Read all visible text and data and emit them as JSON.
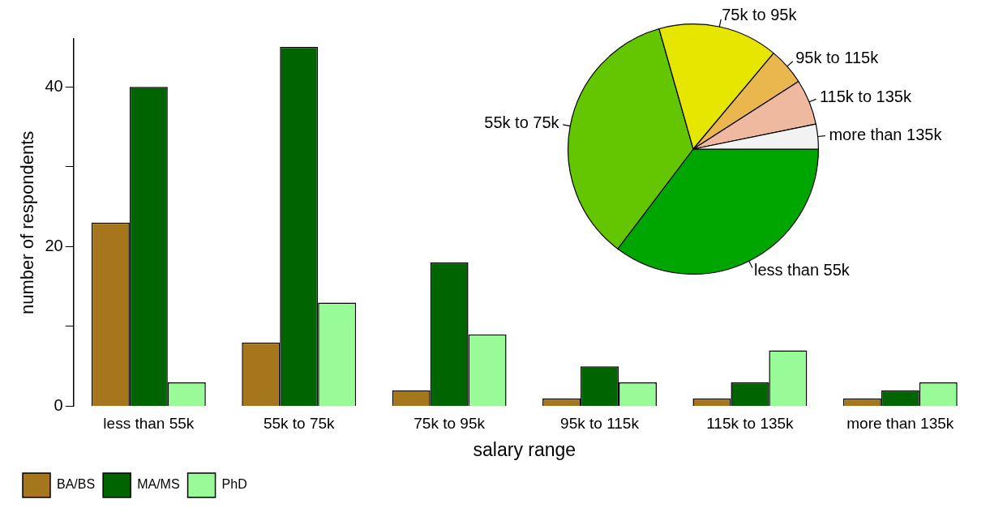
{
  "chart_data": [
    {
      "type": "bar",
      "xlabel": "salary range",
      "ylabel": "number of respondents",
      "categories": [
        "less than 55k",
        "55k to 75k",
        "75k to 95k",
        "95k to 115k",
        "115k to 135k",
        "more than 135k"
      ],
      "series": [
        {
          "name": "BA/BS",
          "color": "#a5761c",
          "values": [
            23,
            8,
            2,
            1,
            1,
            1
          ]
        },
        {
          "name": "MA/MS",
          "color": "#006400",
          "values": [
            40,
            45,
            18,
            5,
            3,
            2
          ]
        },
        {
          "name": "PhD",
          "color": "#98fb98",
          "values": [
            3,
            13,
            9,
            3,
            7,
            3
          ]
        }
      ],
      "ylim": [
        0,
        46
      ],
      "yticks": [
        0,
        {
          "value": 10,
          "label": null
        },
        20,
        {
          "value": 30,
          "label": null
        },
        40
      ],
      "grid": false,
      "legend": "bottom left"
    },
    {
      "type": "pie",
      "categories": [
        "less than 55k",
        "55k to 75k",
        "75k to 95k",
        "95k to 115k",
        "115k to 135k",
        "more than 135k"
      ],
      "values": [
        35.3,
        35.3,
        15.5,
        4.8,
        5.9,
        3.2
      ],
      "colors": [
        "#00a600",
        "#63c600",
        "#e6e600",
        "#eab64e",
        "#eeb99f",
        "#f2f2f2"
      ],
      "legend": false
    }
  ]
}
